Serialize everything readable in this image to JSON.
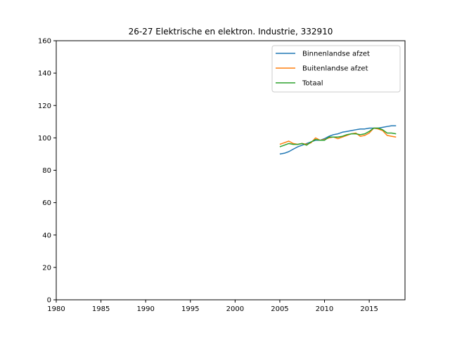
{
  "chart_data": {
    "type": "line",
    "title": "26-27 Elektrische en elektron. Industrie, 332910",
    "xlabel": "",
    "ylabel": "",
    "xlim": [
      1980,
      2019
    ],
    "ylim": [
      0,
      160
    ],
    "xticks": [
      1980,
      1985,
      1990,
      1995,
      2000,
      2005,
      2010,
      2015
    ],
    "yticks": [
      0,
      20,
      40,
      60,
      80,
      100,
      120,
      140,
      160
    ],
    "grid": false,
    "legend_position": "top-right",
    "series": [
      {
        "name": "Binnenlandse afzet",
        "color": "#1f77b4",
        "x": [
          2005.0,
          2005.5,
          2006.0,
          2006.5,
          2007.0,
          2007.5,
          2008.0,
          2008.5,
          2009.0,
          2009.5,
          2010.0,
          2010.5,
          2011.0,
          2011.5,
          2012.0,
          2012.5,
          2013.0,
          2013.5,
          2014.0,
          2014.5,
          2015.0,
          2015.5,
          2016.0,
          2016.5,
          2017.0,
          2017.5,
          2018.0
        ],
        "values": [
          90,
          90.5,
          91.5,
          93,
          94.5,
          95.5,
          96.5,
          97.5,
          98.5,
          98.5,
          99.5,
          101,
          102,
          102.5,
          103.5,
          104,
          104.5,
          105,
          105.5,
          105.5,
          106,
          106,
          106,
          106.5,
          107,
          107.5,
          107.5
        ]
      },
      {
        "name": "Buitenlandse afzet",
        "color": "#ff7f0e",
        "x": [
          2005.0,
          2005.5,
          2006.0,
          2006.5,
          2007.0,
          2007.5,
          2008.0,
          2008.5,
          2009.0,
          2009.5,
          2010.0,
          2010.5,
          2011.0,
          2011.5,
          2012.0,
          2012.5,
          2013.0,
          2013.5,
          2014.0,
          2014.5,
          2015.0,
          2015.5,
          2016.0,
          2016.5,
          2017.0,
          2017.5,
          2018.0
        ],
        "values": [
          96,
          97,
          98,
          96.5,
          96,
          96.5,
          96,
          97,
          100,
          98.5,
          99,
          100,
          100.5,
          99.5,
          100.5,
          101.5,
          102.5,
          103,
          101,
          101.5,
          103,
          106,
          105.5,
          104.5,
          101.5,
          101,
          100.5
        ]
      },
      {
        "name": "Totaal",
        "color": "#2ca02c",
        "x": [
          2005.0,
          2005.5,
          2006.0,
          2006.5,
          2007.0,
          2007.5,
          2008.0,
          2008.5,
          2009.0,
          2009.5,
          2010.0,
          2010.5,
          2011.0,
          2011.5,
          2012.0,
          2012.5,
          2013.0,
          2013.5,
          2014.0,
          2014.5,
          2015.0,
          2015.5,
          2016.0,
          2016.5,
          2017.0,
          2017.5,
          2018.0
        ],
        "values": [
          94.5,
          95.5,
          96.5,
          96,
          96,
          96.5,
          95.5,
          97.5,
          99,
          98.5,
          98.5,
          100.5,
          100.5,
          100.5,
          101,
          102,
          102.5,
          102.5,
          102,
          102.5,
          104,
          106,
          106,
          105,
          103,
          103,
          102.5
        ]
      }
    ]
  }
}
